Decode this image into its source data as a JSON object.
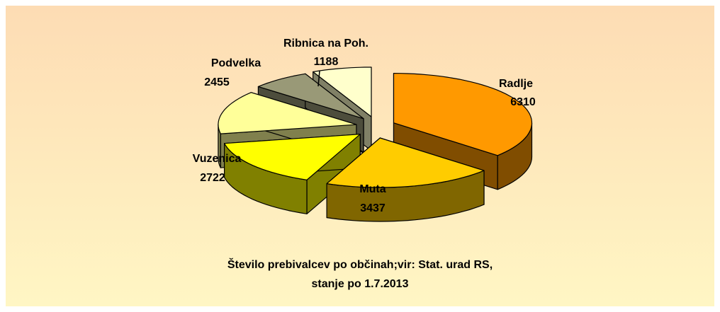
{
  "chart_data": {
    "type": "pie",
    "title": "Število prebivalcev po občinah;vir: Stat. urad RS,",
    "subtitle": "stanje po 1.7.2013",
    "categories": [
      "Radlje",
      "Muta",
      "Vuzenica",
      "Podvelka",
      "Ribnica na Poh.",
      null
    ],
    "values": [
      6310,
      3437,
      2722,
      2455,
      1188,
      1200
    ],
    "colors": [
      "#ff9900",
      "#ffcc00",
      "#ffff00",
      "#ffff99",
      "#999977",
      "#ffffcc"
    ]
  }
}
